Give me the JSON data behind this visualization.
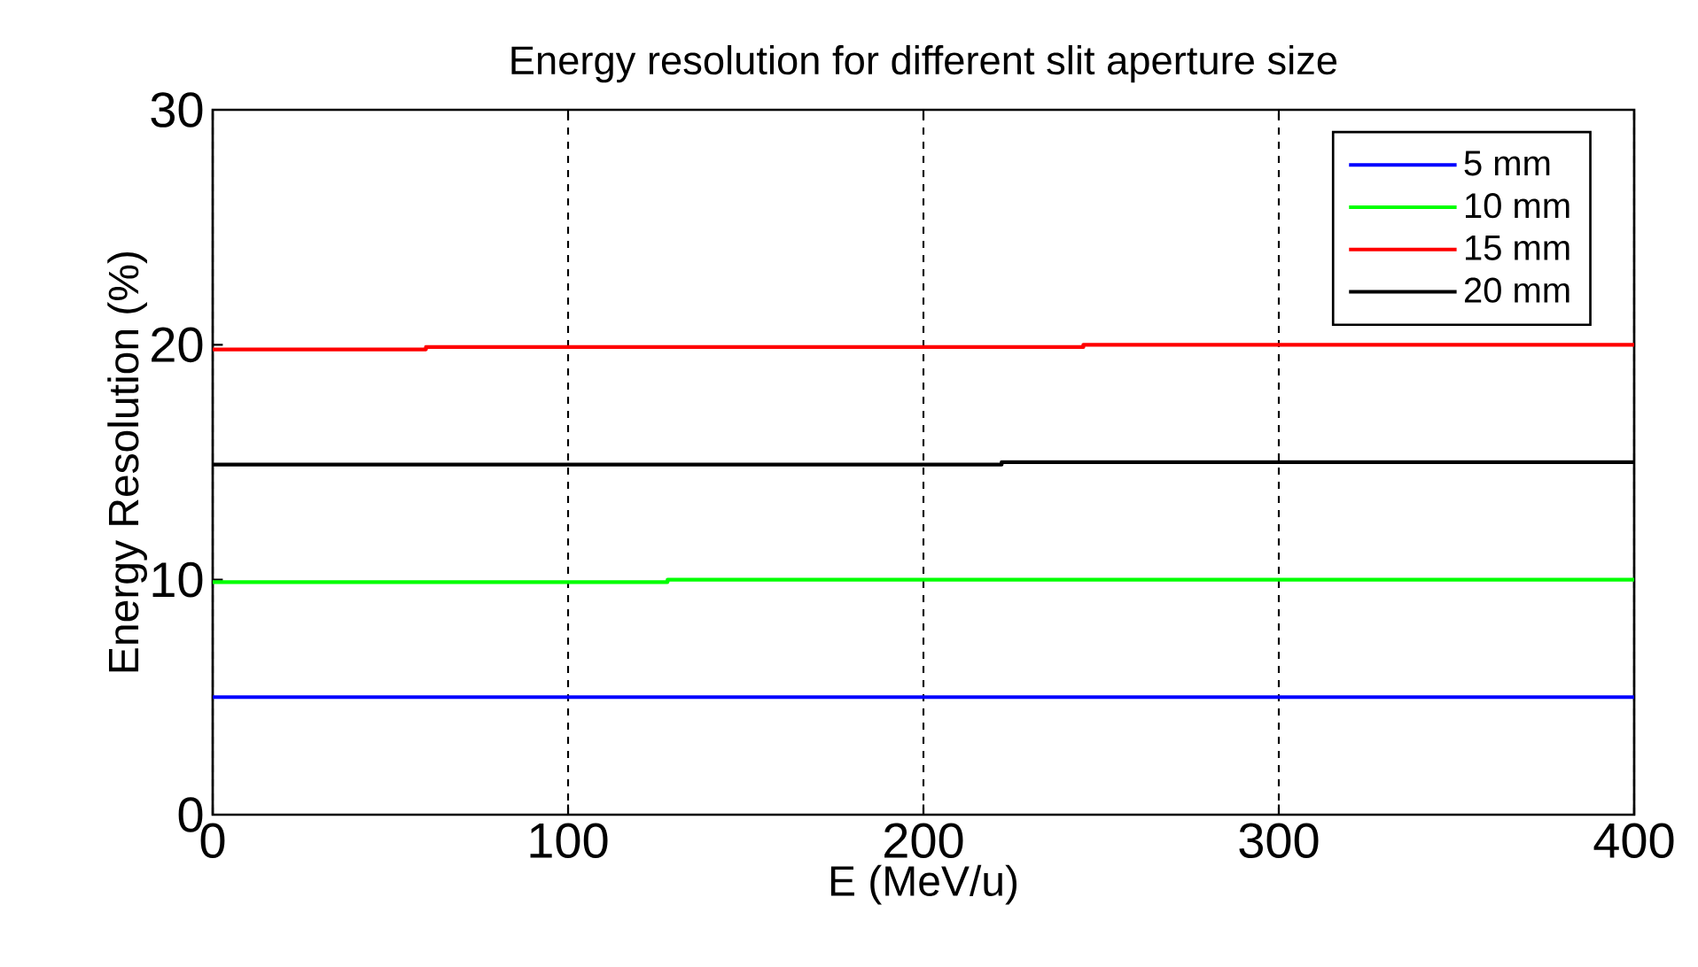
{
  "chart_data": {
    "type": "step",
    "title": "Energy resolution for different slit aperture size",
    "xlabel": "E (MeV/u)",
    "ylabel": "Energy Resolution (%)",
    "xlim": [
      0,
      400
    ],
    "ylim": [
      0,
      30
    ],
    "xticks": [
      0,
      100,
      200,
      300,
      400
    ],
    "yticks": [
      0,
      10,
      20,
      30
    ],
    "grid": "x",
    "legend": "top right",
    "series": [
      {
        "name": "5 mm",
        "color": "#0000ff",
        "x": [
          0,
          400
        ],
        "values": [
          5.0,
          5.0
        ]
      },
      {
        "name": "10 mm",
        "color": "#00ff00",
        "x": [
          0,
          128,
          400
        ],
        "values": [
          9.9,
          10.0,
          10.0
        ]
      },
      {
        "name": "15 mm",
        "color": "#ff0000",
        "x": [
          0,
          60,
          245,
          400
        ],
        "values": [
          19.8,
          19.9,
          20.0,
          20.0
        ]
      },
      {
        "name": "20 mm",
        "color": "#000000",
        "x": [
          0,
          222,
          400
        ],
        "values": [
          14.9,
          15.0,
          15.0
        ]
      }
    ]
  }
}
